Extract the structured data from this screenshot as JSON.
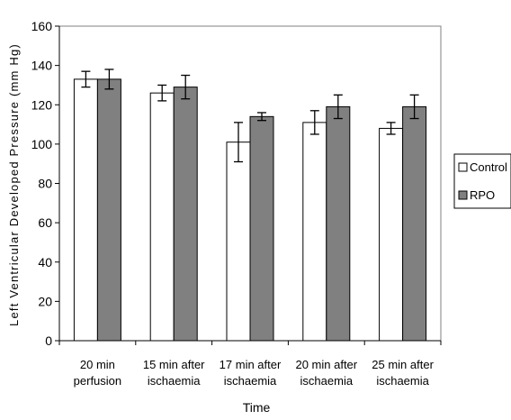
{
  "chart_data": {
    "type": "bar",
    "categories": [
      [
        "20 min",
        "perfusion"
      ],
      [
        "15 min after",
        "ischaemia"
      ],
      [
        "17 min after",
        "ischaemia"
      ],
      [
        "20 min after",
        "ischaemia"
      ],
      [
        "25 min after",
        "ischaemia"
      ]
    ],
    "series": [
      {
        "name": "Control",
        "color": "#ffffff",
        "values": [
          133,
          126,
          101,
          111,
          108
        ],
        "error": [
          4,
          4,
          10,
          6,
          3
        ]
      },
      {
        "name": "RPO",
        "color": "#808080",
        "values": [
          133,
          129,
          114,
          119,
          119
        ],
        "error": [
          5,
          6,
          2,
          6,
          6
        ]
      }
    ],
    "xlabel": "Time",
    "ylabel": "Left Ventricular Developed Pressure (mm Hg)",
    "ylim": [
      0,
      160
    ],
    "yticks": [
      0,
      20,
      40,
      60,
      80,
      100,
      120,
      140,
      160
    ],
    "grid": false,
    "legend_position": "right",
    "error_bars": true
  }
}
